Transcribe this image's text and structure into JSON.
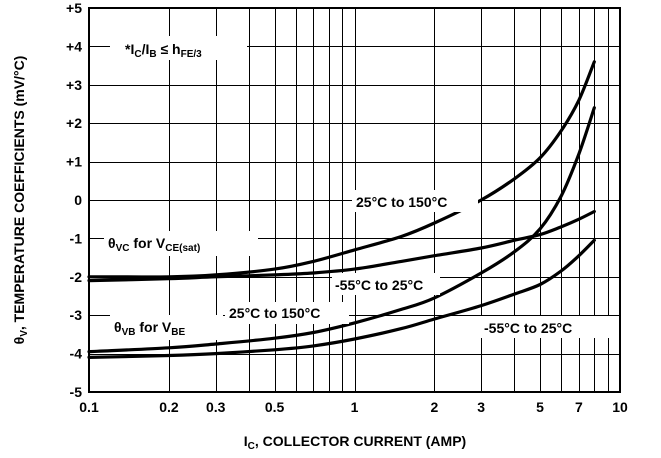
{
  "chart_data": {
    "type": "line",
    "xscale": "log",
    "xlim": [
      0.1,
      10
    ],
    "ylim": [
      -5,
      5
    ],
    "xticks": [
      {
        "v": 0.1,
        "label": "0.1"
      },
      {
        "v": 0.2,
        "label": "0.2"
      },
      {
        "v": 0.3,
        "label": "0.3"
      },
      {
        "v": 0.5,
        "label": "0.5"
      },
      {
        "v": 1,
        "label": "1"
      },
      {
        "v": 2,
        "label": "2"
      },
      {
        "v": 3,
        "label": "3"
      },
      {
        "v": 5,
        "label": "5"
      },
      {
        "v": 7,
        "label": "7"
      },
      {
        "v": 10,
        "label": "10"
      }
    ],
    "yticks": [
      {
        "v": 5,
        "label": "+5"
      },
      {
        "v": 4,
        "label": "+4"
      },
      {
        "v": 3,
        "label": "+3"
      },
      {
        "v": 2,
        "label": "+2"
      },
      {
        "v": 1,
        "label": "+1"
      },
      {
        "v": 0,
        "label": "0"
      },
      {
        "v": -1,
        "label": "-1"
      },
      {
        "v": -2,
        "label": "-2"
      },
      {
        "v": -3,
        "label": "-3"
      },
      {
        "v": -4,
        "label": "-4"
      },
      {
        "v": -5,
        "label": "-5"
      }
    ],
    "xgrid": [
      0.1,
      0.2,
      0.3,
      0.4,
      0.5,
      0.6,
      0.7,
      0.8,
      0.9,
      1,
      2,
      3,
      4,
      5,
      6,
      7,
      8,
      9,
      10
    ],
    "grid": true,
    "xlabel": {
      "main": "I",
      "sub": "C",
      "rest": ", COLLECTOR CURRENT (AMP)"
    },
    "ylabel": {
      "main": "θ",
      "sub": "V",
      "rest": ", TEMPERATURE COEFFICIENTS (mV/°C)"
    },
    "note": {
      "prefix": "*I",
      "sub1": "C",
      "mid": "/I",
      "sub2": "B",
      "rel": " ≤ h",
      "sub3": "FE/3"
    },
    "annotations": {
      "vc_hot": "25°C to 150°C",
      "vc_cold": "-55°C to 25°C",
      "vb_hot": "25°C to 150°C",
      "vb_cold": "-55°C to 25°C",
      "vc_family": {
        "main": "θ",
        "sub": "VC",
        "mid": " for V",
        "sub2": "CE(sat)"
      },
      "vb_family": {
        "main": "θ",
        "sub": "VB",
        "mid": " for V",
        "sub2": "BE"
      }
    },
    "series": [
      {
        "id": "vc_hot",
        "x": [
          0.1,
          0.2,
          0.3,
          0.5,
          0.7,
          1,
          1.5,
          2,
          3,
          4,
          5,
          6,
          7,
          8
        ],
        "y": [
          -2.0,
          -2.0,
          -1.95,
          -1.8,
          -1.6,
          -1.3,
          -0.95,
          -0.6,
          0.0,
          0.55,
          1.1,
          1.8,
          2.6,
          3.6
        ]
      },
      {
        "id": "vc_cold",
        "x": [
          0.1,
          0.2,
          0.3,
          0.5,
          0.7,
          1,
          1.5,
          2,
          3,
          4,
          5,
          6,
          7,
          8
        ],
        "y": [
          -2.1,
          -2.05,
          -2.0,
          -1.95,
          -1.9,
          -1.8,
          -1.6,
          -1.45,
          -1.25,
          -1.05,
          -0.9,
          -0.7,
          -0.5,
          -0.3
        ]
      },
      {
        "id": "vb_hot",
        "x": [
          0.1,
          0.2,
          0.3,
          0.5,
          0.7,
          1,
          1.5,
          2,
          3,
          4,
          5,
          6,
          7,
          8
        ],
        "y": [
          -3.95,
          -3.85,
          -3.75,
          -3.6,
          -3.45,
          -3.2,
          -2.85,
          -2.55,
          -1.9,
          -1.35,
          -0.75,
          0.1,
          1.2,
          2.4
        ]
      },
      {
        "id": "vb_cold",
        "x": [
          0.1,
          0.2,
          0.3,
          0.5,
          0.7,
          1,
          1.5,
          2,
          3,
          4,
          5,
          6,
          7,
          8
        ],
        "y": [
          -4.1,
          -4.05,
          -4.0,
          -3.9,
          -3.8,
          -3.62,
          -3.35,
          -3.1,
          -2.75,
          -2.45,
          -2.2,
          -1.85,
          -1.45,
          -1.05
        ]
      }
    ]
  }
}
